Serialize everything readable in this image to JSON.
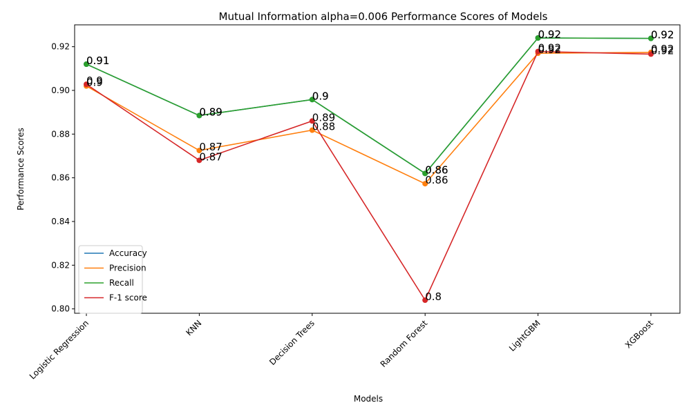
{
  "chart_data": {
    "type": "line",
    "title": "Mutual Information alpha=0.006 Performance Scores of Models",
    "xlabel": "Models",
    "ylabel": "Performance Scores",
    "categories": [
      "Logistic Regression",
      "KNN",
      "Decision Trees",
      "Random Forest",
      "LightGBM",
      "XGBoost"
    ],
    "ylim": [
      0.798,
      0.93
    ],
    "yticks": [
      0.8,
      0.82,
      0.84,
      0.86,
      0.88,
      0.9,
      0.92
    ],
    "ytick_labels": [
      "0.80",
      "0.82",
      "0.84",
      "0.86",
      "0.88",
      "0.90",
      "0.92"
    ],
    "grid": false,
    "legend_position": "lower-left",
    "series": [
      {
        "name": "Accuracy",
        "color": "#1f77b4",
        "values": [
          0.912,
          0.8885,
          0.8958,
          0.862,
          0.924,
          0.9238
        ],
        "labels": [
          "0.91",
          "0.89",
          "0.9",
          "0.86",
          "0.92",
          "0.92"
        ]
      },
      {
        "name": "Precision",
        "color": "#ff7f0e",
        "values": [
          0.902,
          0.8725,
          0.8818,
          0.8573,
          0.917,
          0.9174
        ],
        "labels": [
          "0.9",
          "0.87",
          "0.88",
          "0.86",
          "0.92",
          "0.92"
        ]
      },
      {
        "name": "Recall",
        "color": "#2ca02c",
        "values": [
          0.912,
          0.8885,
          0.8958,
          0.862,
          0.924,
          0.9238
        ],
        "labels": [
          "0.91",
          "0.89",
          "0.9",
          "0.86",
          "0.92",
          "0.92"
        ]
      },
      {
        "name": "F-1 score",
        "color": "#d62728",
        "values": [
          0.9028,
          0.868,
          0.886,
          0.804,
          0.9178,
          0.9166
        ],
        "labels": [
          "0.9",
          "0.87",
          "0.89",
          "0.8",
          "0.92",
          "0.92"
        ]
      }
    ]
  }
}
